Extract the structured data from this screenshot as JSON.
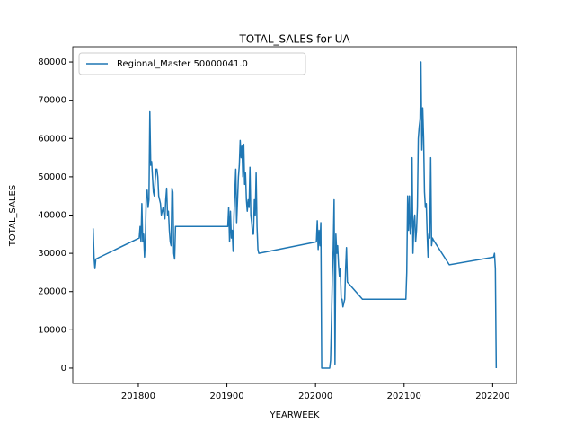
{
  "chart_data": {
    "type": "line",
    "title": "TOTAL_SALES for UA",
    "x_label": "YEARWEEK",
    "y_label": "TOTAL_SALES",
    "legend": "upper left",
    "xlim": [
      201726,
      202227
    ],
    "ylim": [
      -4000,
      84000
    ],
    "xticks": [
      201800,
      201900,
      202000,
      202100,
      202200
    ],
    "yticks": [
      0,
      10000,
      20000,
      30000,
      40000,
      50000,
      60000,
      70000,
      80000
    ],
    "x": [
      201749,
      201750,
      201751,
      201752,
      201801,
      201802,
      201803,
      201804,
      201805,
      201806,
      201807,
      201808,
      201809,
      201810,
      201811,
      201812,
      201813,
      201814,
      201815,
      201816,
      201817,
      201818,
      201819,
      201820,
      201821,
      201822,
      201823,
      201824,
      201825,
      201826,
      201827,
      201828,
      201829,
      201830,
      201831,
      201832,
      201833,
      201834,
      201835,
      201836,
      201837,
      201838,
      201839,
      201840,
      201841,
      201842,
      201852,
      201901,
      201902,
      201903,
      201904,
      201905,
      201906,
      201907,
      201908,
      201909,
      201910,
      201911,
      201912,
      201913,
      201914,
      201915,
      201916,
      201917,
      201918,
      201919,
      201920,
      201921,
      201922,
      201923,
      201924,
      201925,
      201926,
      201927,
      201928,
      201929,
      201930,
      201931,
      201932,
      201933,
      201934,
      201935,
      201936,
      202001,
      202002,
      202003,
      202004,
      202005,
      202006,
      202007,
      202008,
      202016,
      202017,
      202018,
      202019,
      202020,
      202021,
      202022,
      202023,
      202024,
      202025,
      202026,
      202027,
      202028,
      202029,
      202030,
      202031,
      202032,
      202033,
      202034,
      202035,
      202036,
      202053,
      202101,
      202102,
      202103,
      202104,
      202105,
      202106,
      202107,
      202108,
      202109,
      202110,
      202111,
      202112,
      202113,
      202114,
      202115,
      202116,
      202117,
      202118,
      202119,
      202120,
      202121,
      202122,
      202123,
      202124,
      202125,
      202126,
      202127,
      202128,
      202129,
      202130,
      202131,
      202132,
      202133,
      202151,
      202201,
      202202,
      202203,
      202204
    ],
    "series": [
      {
        "name": "Regional_Master 50000041.0",
        "color": "#1f77b4",
        "values": [
          36500,
          29000,
          26000,
          28500,
          34000,
          37000,
          33000,
          43000,
          33000,
          35000,
          29000,
          34000,
          46000,
          46500,
          42000,
          44000,
          67000,
          53000,
          54000,
          50000,
          46000,
          45000,
          49000,
          52000,
          52000,
          50000,
          45000,
          44000,
          43000,
          40000,
          41000,
          42000,
          40000,
          39000,
          44000,
          47000,
          40000,
          41000,
          36000,
          33000,
          32000,
          47000,
          46000,
          30000,
          28500,
          37000,
          37000,
          37000,
          42000,
          33000,
          41000,
          34000,
          36000,
          30500,
          40000,
          46000,
          52000,
          38000,
          44000,
          50000,
          53000,
          59500,
          55000,
          58000,
          50000,
          58500,
          48000,
          51000,
          44000,
          41000,
          44000,
          42000,
          52500,
          40000,
          38000,
          35000,
          35000,
          44000,
          40000,
          51000,
          37000,
          31000,
          30000,
          33000,
          38500,
          31000,
          36000,
          32000,
          38000,
          0,
          0,
          0,
          2000,
          12000,
          24000,
          31000,
          44000,
          1000,
          35000,
          30000,
          32000,
          27000,
          24000,
          26000,
          18000,
          18000,
          16000,
          17000,
          18000,
          26000,
          31500,
          22500,
          18000,
          18000,
          18000,
          25000,
          45000,
          36000,
          45000,
          35000,
          37000,
          55000,
          30000,
          38000,
          40000,
          33000,
          36000,
          42000,
          60000,
          63000,
          65000,
          80000,
          57000,
          68000,
          60000,
          46000,
          42000,
          43000,
          35000,
          29000,
          35000,
          34000,
          55000,
          32000,
          34000,
          33500,
          27000,
          29000,
          30000,
          26000,
          0
        ]
      }
    ]
  }
}
